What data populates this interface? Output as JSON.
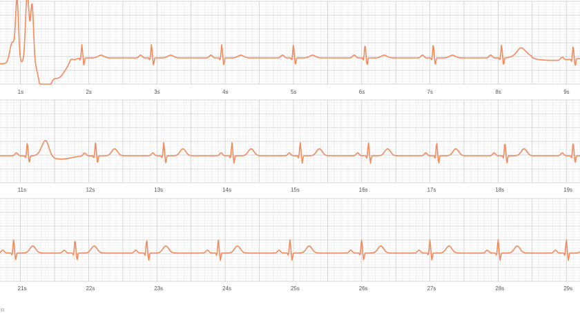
{
  "colors": {
    "trace": "#f4895c",
    "grid_minor": "#e4e4e4",
    "grid_major": "#c9c9c9",
    "tick_text": "#555555",
    "background": "#ffffff"
  },
  "chart_data": {
    "type": "line",
    "title": "",
    "xlabel": "",
    "ylabel": "",
    "grid": true,
    "strips": [
      {
        "xlim": [
          0.7,
          9.2
        ],
        "ticks": [
          "1s",
          "2s",
          "3s",
          "4s",
          "5s",
          "6s",
          "7s",
          "8s",
          "9s"
        ],
        "beats": [
          1.9,
          2.92,
          3.95,
          5.0,
          6.05,
          7.05,
          8.05,
          9.1
        ],
        "wave_offset": -0.22
      },
      {
        "xlim": [
          10.7,
          19.2
        ],
        "ticks": [
          "11s",
          "12s",
          "13s",
          "14s",
          "15s",
          "16s",
          "17s",
          "18s",
          "19s"
        ],
        "beats": [
          11.1,
          12.1,
          13.1,
          14.1,
          15.1,
          16.1,
          17.1,
          18.1,
          19.1
        ],
        "wave_offset": 0.3
      },
      {
        "xlim": [
          20.7,
          29.2
        ],
        "ticks": [
          "21s",
          "22s",
          "23s",
          "24s",
          "25s",
          "26s",
          "27s",
          "28s",
          "29s"
        ],
        "beats": [
          20.9,
          21.8,
          22.85,
          23.9,
          24.95,
          26.0,
          27.0,
          28.0,
          29.0
        ],
        "wave_offset": 0.3
      }
    ]
  }
}
